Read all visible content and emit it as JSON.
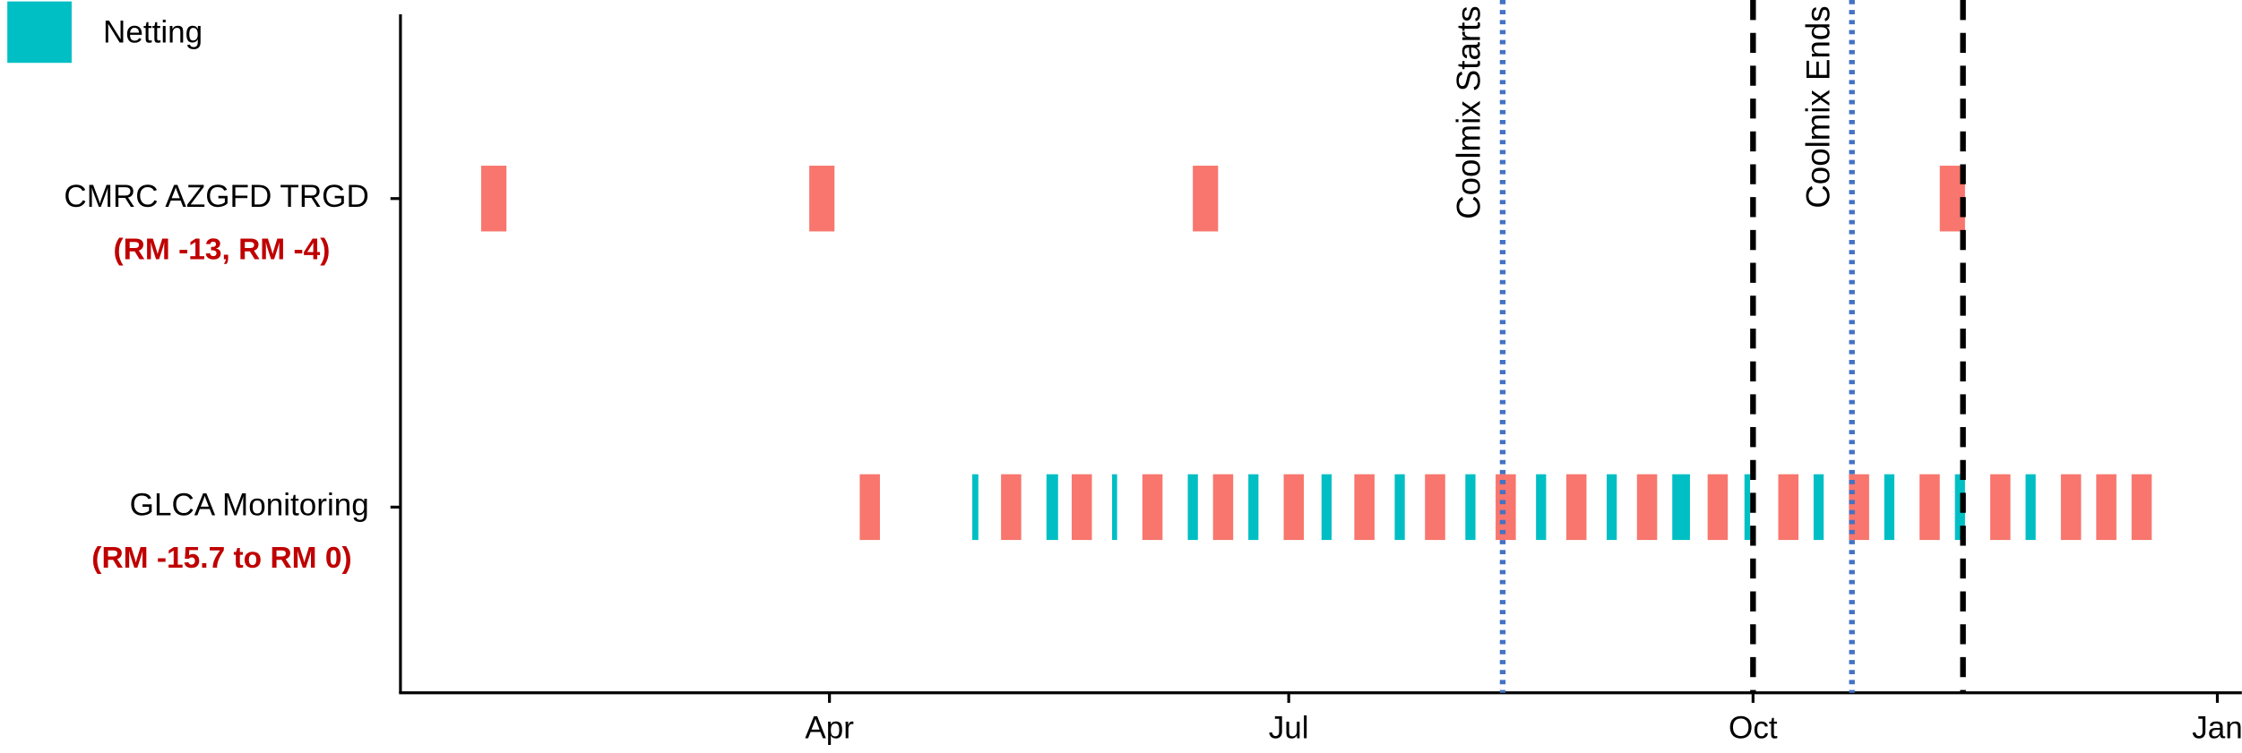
{
  "chart_data": {
    "type": "timeline",
    "categories": [
      "CMRC AZGFD TRGD",
      "GLCA Monitoring"
    ],
    "subtitles": [
      "(RM -13, RM -4)",
      "(RM -15.7 to RM 0)"
    ],
    "xlim": [
      6,
      370
    ],
    "xticks": [
      {
        "value": 91,
        "label": "Apr"
      },
      {
        "value": 182,
        "label": "Jul"
      },
      {
        "value": 274,
        "label": "Oct"
      },
      {
        "value": 366,
        "label": "Jan"
      }
    ],
    "legend": "top-left",
    "series": [
      {
        "color": "#f8766d",
        "values": [
          [
            [
              22,
              27
            ],
            [
              87,
              92
            ],
            [
              163,
              168
            ],
            [
              311,
              316
            ]
          ],
          [
            [
              97,
              101
            ],
            [
              125,
              129
            ],
            [
              139,
              143
            ],
            [
              153,
              157
            ],
            [
              167,
              171
            ],
            [
              181,
              185
            ],
            [
              195,
              199
            ],
            [
              209,
              213
            ],
            [
              223,
              227
            ],
            [
              237,
              241
            ],
            [
              251,
              255
            ],
            [
              265,
              269
            ],
            [
              279,
              283
            ],
            [
              293,
              297
            ],
            [
              307,
              311
            ],
            [
              321,
              325
            ],
            [
              335,
              339
            ],
            [
              342,
              346
            ],
            [
              349,
              353
            ]
          ]
        ]
      },
      {
        "name": "Netting",
        "color": "#00bfc4",
        "values": [
          [],
          [
            [
              119.3,
              120.5
            ],
            [
              134,
              136.3
            ],
            [
              147,
              148
            ],
            [
              162,
              164
            ],
            [
              174,
              176
            ],
            [
              188.5,
              190.5
            ],
            [
              203,
              205
            ],
            [
              217,
              219
            ],
            [
              231,
              233
            ],
            [
              245,
              247
            ],
            [
              258,
              261.5
            ],
            [
              272.3,
              273.4
            ],
            [
              286,
              288
            ],
            [
              300,
              302
            ],
            [
              314,
              316
            ],
            [
              328,
              330
            ]
          ]
        ]
      }
    ],
    "vlines": [
      {
        "x": 224.4,
        "label": "Coolmix Starts",
        "color": "#4472c4",
        "style": "dotted"
      },
      {
        "x": 293.6,
        "label": "Coolmix Ends",
        "color": "#4472c4",
        "style": "dotted"
      },
      {
        "x": 274,
        "color": "#000000",
        "style": "dashed"
      },
      {
        "x": 315.6,
        "color": "#000000",
        "style": "dashed"
      }
    ]
  }
}
